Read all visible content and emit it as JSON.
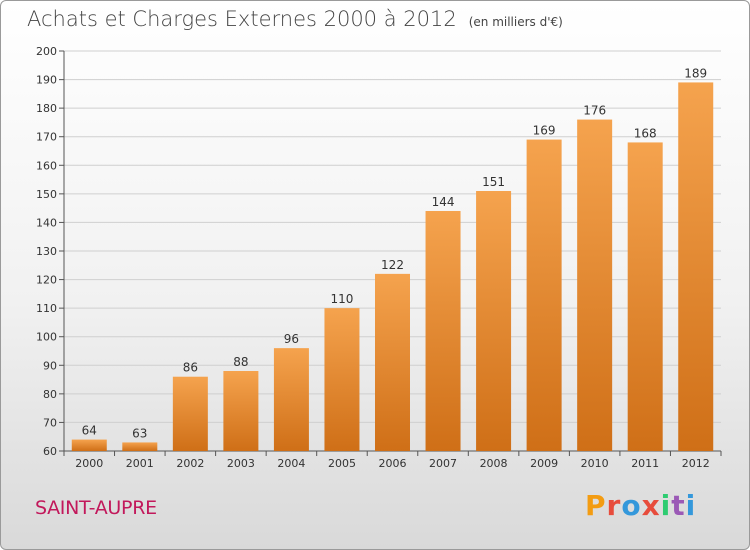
{
  "title": "Achats et Charges Externes 2000 à 2012",
  "unit": "(en milliers d'€)",
  "town": "SAINT-AUPRE",
  "logo": {
    "text": "Proxiti",
    "colors": [
      "#f39c12",
      "#e74c3c",
      "#3498db",
      "#e74c3c",
      "#2ecc71",
      "#9b59b6",
      "#3498db"
    ]
  },
  "colors": {
    "bar_top": "#f5a34e",
    "bar_bottom": "#cf6f17",
    "town": "#c2185b"
  },
  "chart_data": {
    "type": "bar",
    "categories": [
      "2000",
      "2001",
      "2002",
      "2003",
      "2004",
      "2005",
      "2006",
      "2007",
      "2008",
      "2009",
      "2010",
      "2011",
      "2012"
    ],
    "values": [
      64,
      63,
      86,
      88,
      96,
      110,
      122,
      144,
      151,
      169,
      176,
      168,
      189
    ],
    "ylim": [
      60,
      200
    ],
    "yticks": [
      60,
      70,
      80,
      90,
      100,
      110,
      120,
      130,
      140,
      150,
      160,
      170,
      180,
      190,
      200
    ],
    "grid": true
  }
}
